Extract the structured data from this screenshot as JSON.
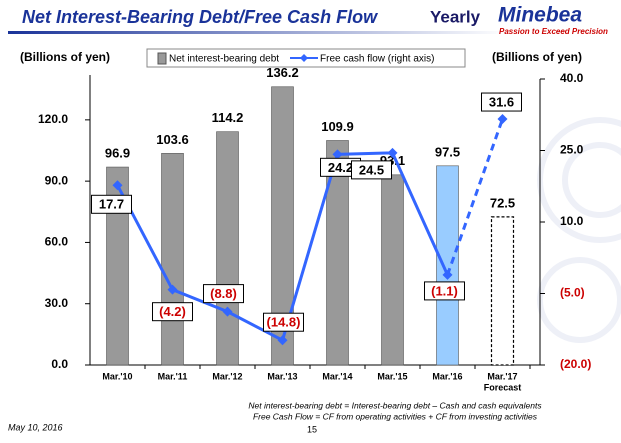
{
  "header": {
    "title": "Net Interest-Bearing Debt/Free Cash Flow",
    "period": "Yearly",
    "logo": "Minebea",
    "tagline": "Passion to Exceed Precision"
  },
  "chart_data": {
    "type": "bar_line",
    "y_label": "(Billions of yen)",
    "y2_label": "(Billions of yen)",
    "categories": [
      "Mar.'10",
      "Mar.'11",
      "Mar.'12",
      "Mar.'13",
      "Mar.'14",
      "Mar.'15",
      "Mar.'16",
      "Mar.'17"
    ],
    "category_note": "Forecast",
    "series": [
      {
        "name": "Net interest-bearing debt",
        "type": "bar",
        "color": "#999999",
        "colors": [
          "#999999",
          "#999999",
          "#999999",
          "#999999",
          "#999999",
          "#999999",
          "#99ccff",
          "#ffffff"
        ],
        "values": [
          96.9,
          103.6,
          114.2,
          136.2,
          109.9,
          93.1,
          97.5,
          72.5
        ]
      },
      {
        "name": "Free cash flow (right axis)",
        "type": "line",
        "axis": "y2",
        "color": "#3366ff",
        "values": [
          17.7,
          -4.2,
          -8.8,
          -14.8,
          24.2,
          24.5,
          -1.1,
          31.6
        ],
        "value_labels": [
          "17.7",
          "(4.2)",
          "(8.8)",
          "(14.8)",
          "24.2",
          "24.5",
          "(1.1)",
          "31.6"
        ]
      }
    ],
    "ylim": [
      0,
      140
    ],
    "yticks": [
      {
        "value": 0,
        "label": "0.0"
      },
      {
        "value": 30,
        "label": "30.0"
      },
      {
        "value": 60,
        "label": "60.0"
      },
      {
        "value": 90,
        "label": "90.0"
      },
      {
        "value": 120,
        "label": "120.0"
      }
    ],
    "y2lim": [
      -20,
      40
    ],
    "y2ticks": [
      {
        "value": -20,
        "label": "(20.0)"
      },
      {
        "value": -5,
        "label": "(5.0)"
      },
      {
        "value": 10,
        "label": "10.0"
      },
      {
        "value": 25,
        "label": "25.0"
      },
      {
        "value": 40,
        "label": "40.0"
      }
    ]
  },
  "footnotes": [
    "Net interest-bearing debt = Interest-bearing debt – Cash and cash equivalents",
    "Free Cash Flow = CF from operating activities + CF from investing activities"
  ],
  "footer": {
    "date": "May 10, 2016",
    "page": "15"
  }
}
